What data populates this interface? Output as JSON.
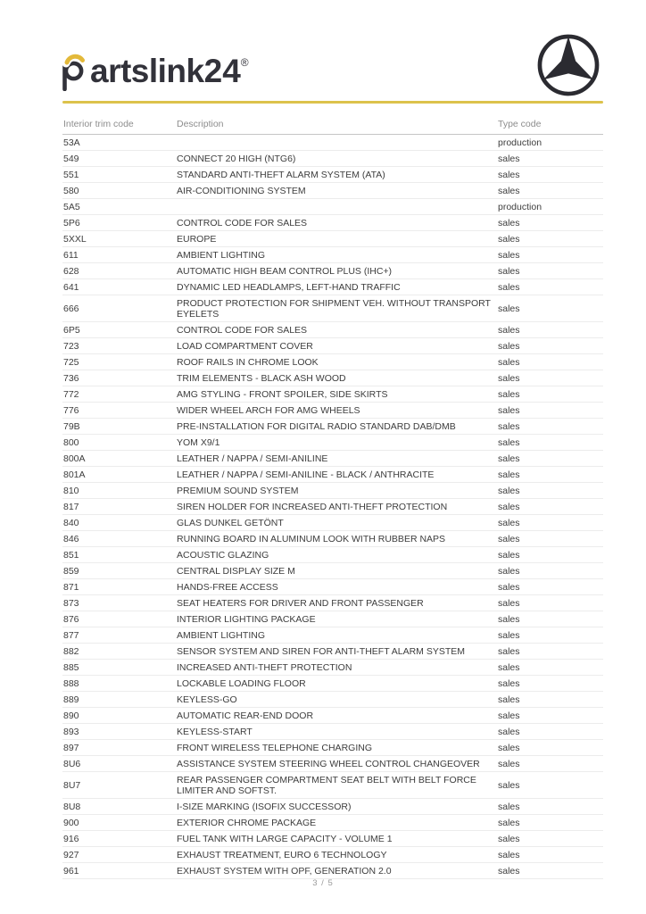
{
  "brand": {
    "name": "partslink24",
    "logo_text_rest": "artslink",
    "logo_text_number": "24",
    "registered_mark": "®",
    "accent_color": "#dcc24b",
    "logo_color": "#32323a"
  },
  "manufacturer": {
    "icon": "mercedes-star-icon",
    "color": "#2b2b31"
  },
  "table": {
    "columns": [
      "Interior trim code",
      "Description",
      "Type code"
    ],
    "rows": [
      {
        "code": "53A",
        "description": "",
        "type": "production"
      },
      {
        "code": "549",
        "description": "CONNECT 20 HIGH (NTG6)",
        "type": "sales"
      },
      {
        "code": "551",
        "description": "STANDARD ANTI-THEFT ALARM SYSTEM (ATA)",
        "type": "sales"
      },
      {
        "code": "580",
        "description": "AIR-CONDITIONING SYSTEM",
        "type": "sales"
      },
      {
        "code": "5A5",
        "description": "",
        "type": "production"
      },
      {
        "code": "5P6",
        "description": "CONTROL CODE FOR SALES",
        "type": "sales"
      },
      {
        "code": "5XXL",
        "description": "EUROPE",
        "type": "sales"
      },
      {
        "code": "611",
        "description": "AMBIENT LIGHTING",
        "type": "sales"
      },
      {
        "code": "628",
        "description": "AUTOMATIC HIGH BEAM CONTROL PLUS (IHC+)",
        "type": "sales"
      },
      {
        "code": "641",
        "description": "DYNAMIC LED HEADLAMPS, LEFT-HAND TRAFFIC",
        "type": "sales"
      },
      {
        "code": "666",
        "description": "PRODUCT PROTECTION FOR SHIPMENT VEH. WITHOUT TRANSPORT EYELETS",
        "type": "sales"
      },
      {
        "code": "6P5",
        "description": "CONTROL CODE FOR SALES",
        "type": "sales"
      },
      {
        "code": "723",
        "description": "LOAD COMPARTMENT COVER",
        "type": "sales"
      },
      {
        "code": "725",
        "description": "ROOF RAILS IN CHROME LOOK",
        "type": "sales"
      },
      {
        "code": "736",
        "description": "TRIM ELEMENTS - BLACK ASH WOOD",
        "type": "sales"
      },
      {
        "code": "772",
        "description": "AMG STYLING - FRONT SPOILER, SIDE SKIRTS",
        "type": "sales"
      },
      {
        "code": "776",
        "description": "WIDER WHEEL ARCH FOR AMG WHEELS",
        "type": "sales"
      },
      {
        "code": "79B",
        "description": "PRE-INSTALLATION FOR DIGITAL RADIO STANDARD DAB/DMB",
        "type": "sales"
      },
      {
        "code": "800",
        "description": "YOM X9/1",
        "type": "sales"
      },
      {
        "code": "800A",
        "description": "LEATHER / NAPPA / SEMI-ANILINE",
        "type": "sales"
      },
      {
        "code": "801A",
        "description": "LEATHER / NAPPA / SEMI-ANILINE - BLACK / ANTHRACITE",
        "type": "sales"
      },
      {
        "code": "810",
        "description": "PREMIUM SOUND SYSTEM",
        "type": "sales"
      },
      {
        "code": "817",
        "description": "SIREN HOLDER FOR INCREASED ANTI-THEFT PROTECTION",
        "type": "sales"
      },
      {
        "code": "840",
        "description": "GLAS DUNKEL GETÖNT",
        "type": "sales"
      },
      {
        "code": "846",
        "description": "RUNNING BOARD IN ALUMINUM LOOK WITH RUBBER NAPS",
        "type": "sales"
      },
      {
        "code": "851",
        "description": "ACOUSTIC GLAZING",
        "type": "sales"
      },
      {
        "code": "859",
        "description": "CENTRAL DISPLAY SIZE M",
        "type": "sales"
      },
      {
        "code": "871",
        "description": "HANDS-FREE ACCESS",
        "type": "sales"
      },
      {
        "code": "873",
        "description": "SEAT HEATERS FOR DRIVER AND FRONT PASSENGER",
        "type": "sales"
      },
      {
        "code": "876",
        "description": "INTERIOR LIGHTING PACKAGE",
        "type": "sales"
      },
      {
        "code": "877",
        "description": "AMBIENT LIGHTING",
        "type": "sales"
      },
      {
        "code": "882",
        "description": "SENSOR SYSTEM AND SIREN FOR ANTI-THEFT ALARM SYSTEM",
        "type": "sales"
      },
      {
        "code": "885",
        "description": "INCREASED ANTI-THEFT PROTECTION",
        "type": "sales"
      },
      {
        "code": "888",
        "description": "LOCKABLE LOADING FLOOR",
        "type": "sales"
      },
      {
        "code": "889",
        "description": "KEYLESS-GO",
        "type": "sales"
      },
      {
        "code": "890",
        "description": "AUTOMATIC REAR-END DOOR",
        "type": "sales"
      },
      {
        "code": "893",
        "description": "KEYLESS-START",
        "type": "sales"
      },
      {
        "code": "897",
        "description": "FRONT WIRELESS TELEPHONE CHARGING",
        "type": "sales"
      },
      {
        "code": "8U6",
        "description": "ASSISTANCE SYSTEM STEERING WHEEL CONTROL CHANGEOVER",
        "type": "sales"
      },
      {
        "code": "8U7",
        "description": "REAR PASSENGER COMPARTMENT SEAT BELT WITH BELT FORCE LIMITER AND SOFTST.",
        "type": "sales"
      },
      {
        "code": "8U8",
        "description": "I-SIZE MARKING (ISOFIX SUCCESSOR)",
        "type": "sales"
      },
      {
        "code": "900",
        "description": "EXTERIOR CHROME PACKAGE",
        "type": "sales"
      },
      {
        "code": "916",
        "description": "FUEL TANK WITH LARGE CAPACITY - VOLUME 1",
        "type": "sales"
      },
      {
        "code": "927",
        "description": "EXHAUST TREATMENT, EURO 6 TECHNOLOGY",
        "type": "sales"
      },
      {
        "code": "961",
        "description": "EXHAUST SYSTEM WITH OPF, GENERATION 2.0",
        "type": "sales"
      }
    ]
  },
  "footer": {
    "page_indicator": "3 / 5"
  }
}
